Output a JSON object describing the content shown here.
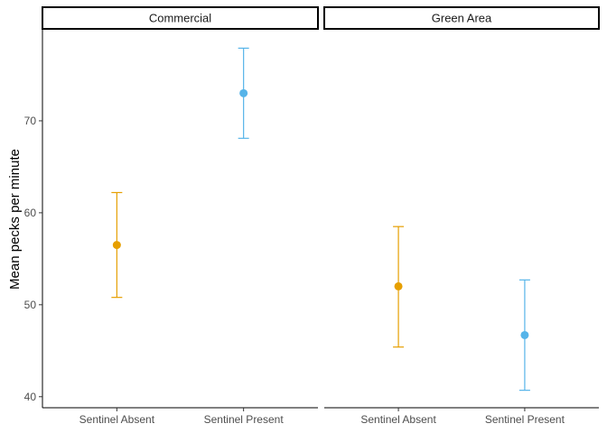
{
  "chart_data": {
    "type": "scatter",
    "ylabel": "Mean pecks per minute",
    "xlabel": "",
    "ylim": [
      38.8,
      80.0
    ],
    "yticks": [
      40,
      50,
      60,
      70
    ],
    "categories": [
      "Sentinel Absent",
      "Sentinel Present"
    ],
    "colors": {
      "Sentinel Absent": "#E69F00",
      "Sentinel Present": "#56B4E9"
    },
    "grid": false,
    "legend": "none",
    "panels": [
      {
        "title": "Commercial",
        "points": [
          {
            "x": "Sentinel Absent",
            "y": 56.5,
            "ymin": 50.8,
            "ymax": 62.2
          },
          {
            "x": "Sentinel Present",
            "y": 73.0,
            "ymin": 68.1,
            "ymax": 77.9
          }
        ]
      },
      {
        "title": "Green Area",
        "points": [
          {
            "x": "Sentinel Absent",
            "y": 52.0,
            "ymin": 45.4,
            "ymax": 58.5
          },
          {
            "x": "Sentinel Present",
            "y": 46.7,
            "ymin": 40.7,
            "ymax": 52.7
          }
        ]
      }
    ]
  }
}
